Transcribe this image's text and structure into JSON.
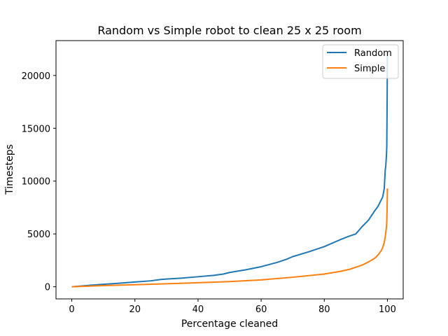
{
  "chart_data": {
    "type": "line",
    "title": "Random vs Simple robot to clean 25 x 25 room",
    "xlabel": "Percentage cleaned",
    "ylabel": "Timesteps",
    "xlim": [
      -5,
      105
    ],
    "ylim": [
      -1150,
      23300
    ],
    "x_ticks": [
      0,
      20,
      40,
      60,
      80,
      100
    ],
    "y_ticks": [
      0,
      5000,
      10000,
      15000,
      20000
    ],
    "legend_position": "top-right",
    "grid": false,
    "series": [
      {
        "name": "Random",
        "color": "#1f77b4",
        "x": [
          0,
          5,
          10,
          15,
          20,
          25,
          28,
          30,
          35,
          40,
          45,
          48,
          50,
          55,
          60,
          65,
          68,
          70,
          75,
          80,
          85,
          88,
          90,
          92,
          94,
          96,
          97,
          98,
          98.5,
          99,
          99.3,
          99.5,
          99.7,
          99.8,
          99.9,
          100
        ],
        "y": [
          0,
          120,
          230,
          330,
          450,
          560,
          680,
          730,
          820,
          950,
          1080,
          1200,
          1350,
          1600,
          1900,
          2300,
          2600,
          2850,
          3300,
          3800,
          4450,
          4800,
          5000,
          5700,
          6300,
          7200,
          7600,
          8200,
          8500,
          9300,
          11000,
          11500,
          12500,
          13300,
          17000,
          22000
        ]
      },
      {
        "name": "Simple",
        "color": "#ff7f0e",
        "x": [
          0,
          10,
          20,
          30,
          40,
          50,
          60,
          70,
          80,
          85,
          88,
          90,
          92,
          94,
          96,
          97,
          98,
          98.5,
          99,
          99.3,
          99.5,
          99.7,
          99.8,
          99.9,
          100
        ],
        "y": [
          0,
          110,
          190,
          280,
          380,
          490,
          650,
          900,
          1200,
          1450,
          1650,
          1850,
          2050,
          2350,
          2700,
          3000,
          3400,
          3700,
          4200,
          4700,
          5200,
          5700,
          6200,
          7300,
          9300
        ]
      }
    ]
  }
}
